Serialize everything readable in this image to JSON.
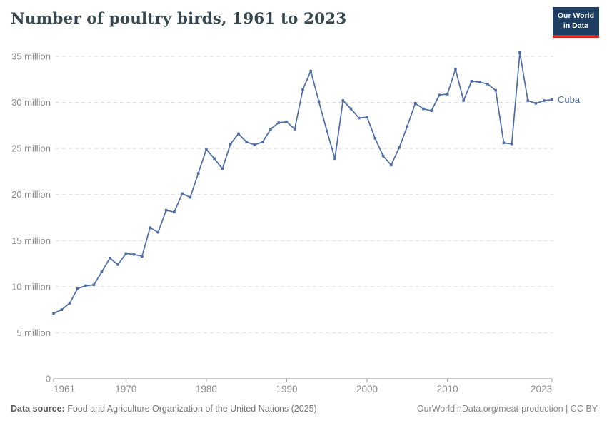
{
  "header": {
    "title": "Number of poultry birds, 1961 to 2023",
    "logo_line1": "Our World",
    "logo_line2": "in Data"
  },
  "chart_data": {
    "type": "line",
    "title": "Number of poultry birds, 1961 to 2023",
    "unit": "million birds",
    "xlabel": "",
    "ylabel": "",
    "xlim": [
      1961,
      2023
    ],
    "ylim": [
      0,
      35
    ],
    "grid": "horizontal-dashed",
    "legend_position": "end-of-line",
    "xticks": [
      1961,
      1970,
      1980,
      1990,
      2000,
      2010,
      2023
    ],
    "yticks": [
      {
        "value": 0,
        "label": "0"
      },
      {
        "value": 5,
        "label": "5 million"
      },
      {
        "value": 10,
        "label": "10 million"
      },
      {
        "value": 15,
        "label": "15 million"
      },
      {
        "value": 20,
        "label": "20 million"
      },
      {
        "value": 25,
        "label": "25 million"
      },
      {
        "value": 30,
        "label": "30 million"
      },
      {
        "value": 35,
        "label": "35 million"
      }
    ],
    "series": [
      {
        "name": "Cuba",
        "color": "#4c6da5",
        "x": [
          1961,
          1962,
          1963,
          1964,
          1965,
          1966,
          1967,
          1968,
          1969,
          1970,
          1971,
          1972,
          1973,
          1974,
          1975,
          1976,
          1977,
          1978,
          1979,
          1980,
          1981,
          1982,
          1983,
          1984,
          1985,
          1986,
          1987,
          1988,
          1989,
          1990,
          1991,
          1992,
          1993,
          1994,
          1995,
          1996,
          1997,
          1998,
          1999,
          2000,
          2001,
          2002,
          2003,
          2004,
          2005,
          2006,
          2007,
          2008,
          2009,
          2010,
          2011,
          2012,
          2013,
          2014,
          2015,
          2016,
          2017,
          2018,
          2019,
          2020,
          2021,
          2022,
          2023
        ],
        "values": [
          7.1,
          7.5,
          8.2,
          9.8,
          10.1,
          10.2,
          11.6,
          13.1,
          12.4,
          13.6,
          13.5,
          13.3,
          16.4,
          15.9,
          18.3,
          18.1,
          20.1,
          19.7,
          22.3,
          24.9,
          23.9,
          22.8,
          25.5,
          26.6,
          25.7,
          25.4,
          25.7,
          27.1,
          27.8,
          27.9,
          27.1,
          31.4,
          33.4,
          30.1,
          26.9,
          23.9,
          30.2,
          29.3,
          28.3,
          28.4,
          26.1,
          24.2,
          23.2,
          25.1,
          27.4,
          29.9,
          29.3,
          29.1,
          30.8,
          30.9,
          33.6,
          30.2,
          32.3,
          32.2,
          32.0,
          31.3,
          25.6,
          25.5,
          35.4,
          30.2,
          29.9,
          30.2,
          30.3
        ]
      }
    ]
  },
  "footer": {
    "source_label": "Data source:",
    "source_text": " Food and Agriculture Organization of the United Nations (2025)",
    "link_text": "OurWorldinData.org/meat-production | CC BY"
  },
  "colors": {
    "series": "#4c6da5",
    "title_text": "#37474f",
    "axis_text": "#8b8b8b",
    "axis_line": "#999999",
    "gridline": "#dcdcdc",
    "logo_bg": "#1d3d63",
    "logo_accent": "#d42b21"
  }
}
